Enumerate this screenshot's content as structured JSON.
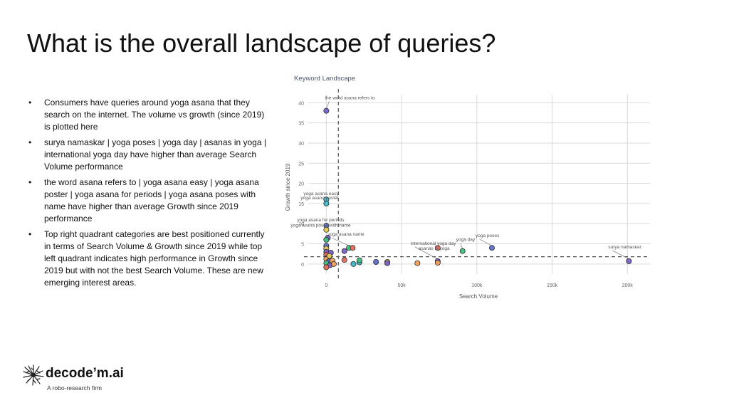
{
  "slide": {
    "title": "What is the overall landscape of queries?",
    "bullets": [
      "Consumers have queries around yoga asana that they search on the internet. The volume vs growth (since 2019) is plotted here",
      "surya namaskar | yoga poses | yoga day | asanas in yoga | international yoga day have higher than average Search Volume performance",
      "the word asana refers to | yoga asana easy | yoga asana poster | yoga asana for periods | yoga asana poses with name have higher than average Growth since 2019 performance",
      "Top right quadrant categories are best positioned currently in terms of Search Volume & Growth since 2019 while top left quadrant indicates high performance in Growth since 2019 but with not the best Search Volume. These are new emerging interest areas."
    ]
  },
  "logo": {
    "name": "decode’m.ai",
    "tagline": "A robo-research firm"
  },
  "chart_data": {
    "type": "scatter",
    "title": "Keyword Landscape",
    "xlabel": "Search Volume",
    "ylabel": "Growth since 2019",
    "xlim": [
      -12000,
      215000
    ],
    "ylim": [
      -2.5,
      42
    ],
    "x_ticks": [
      0,
      50000,
      100000,
      150000,
      200000
    ],
    "x_tick_labels": [
      "0",
      "50k",
      "100k",
      "150k",
      "200k"
    ],
    "y_ticks": [
      0,
      5,
      10,
      15,
      20,
      25,
      30,
      35,
      40
    ],
    "y_tick_labels": [
      "0",
      "5",
      "10",
      "15",
      "20",
      "25",
      "30",
      "35",
      "40"
    ],
    "grid": true,
    "reference_lines": {
      "x_average": 8000,
      "y_average": 1.8
    },
    "points": [
      {
        "x": 0,
        "y": 38,
        "color": "#7b5fc7",
        "label": "the word asana refers to"
      },
      {
        "x": 0,
        "y": 16,
        "color": "#3fb6c9",
        "label": "yoga asana easy"
      },
      {
        "x": 0,
        "y": 15,
        "color": "#3fb6c9",
        "label": "yoga asana poster"
      },
      {
        "x": 0,
        "y": 9.5,
        "color": "#5b6fc9",
        "label": "yoga asana for periods"
      },
      {
        "x": 0,
        "y": 8.5,
        "color": "#e8c95a",
        "label": "yoga asana poses with name"
      },
      {
        "x": 1000,
        "y": 6.5,
        "color": "#7b5fc7",
        "label": ""
      },
      {
        "x": 0,
        "y": 6.0,
        "color": "#3fbf7f",
        "label": ""
      },
      {
        "x": 0,
        "y": 4.5,
        "color": "#5b6fc9",
        "label": ""
      },
      {
        "x": 0,
        "y": 3.8,
        "color": "#e8c95a",
        "label": ""
      },
      {
        "x": 0,
        "y": 3.0,
        "color": "#7b5fc7",
        "label": ""
      },
      {
        "x": 0,
        "y": 2.3,
        "color": "#e36a5c",
        "label": ""
      },
      {
        "x": 1000,
        "y": 1.6,
        "color": "#3fb6c9",
        "label": ""
      },
      {
        "x": 0,
        "y": 1.2,
        "color": "#f0a05a",
        "label": ""
      },
      {
        "x": 1500,
        "y": 0.6,
        "color": "#5b6fc9",
        "label": ""
      },
      {
        "x": 0,
        "y": 0.2,
        "color": "#3fbf7f",
        "label": ""
      },
      {
        "x": 2500,
        "y": -0.3,
        "color": "#7b5fc7",
        "label": ""
      },
      {
        "x": 0,
        "y": -0.8,
        "color": "#e36a5c",
        "label": ""
      },
      {
        "x": 3000,
        "y": 2.8,
        "color": "#7b5fc7",
        "label": ""
      },
      {
        "x": 2000,
        "y": 2.0,
        "color": "#e8c95a",
        "label": ""
      },
      {
        "x": 4000,
        "y": 0.8,
        "color": "#f0a05a",
        "label": ""
      },
      {
        "x": 5000,
        "y": 0.0,
        "color": "#f0a05a",
        "label": ""
      },
      {
        "x": 15000,
        "y": 4.0,
        "color": "#3fbf7f",
        "label": "yoga asana name"
      },
      {
        "x": 17500,
        "y": 4.0,
        "color": "#e36a5c",
        "label": ""
      },
      {
        "x": 12000,
        "y": 3.2,
        "color": "#7b5fc7",
        "label": ""
      },
      {
        "x": 12000,
        "y": 1.0,
        "color": "#e36a5c",
        "label": ""
      },
      {
        "x": 18000,
        "y": 0.0,
        "color": "#3fb6c9",
        "label": ""
      },
      {
        "x": 22000,
        "y": 0.4,
        "color": "#3fb6c9",
        "label": ""
      },
      {
        "x": 22000,
        "y": 0.9,
        "color": "#3fbf7f",
        "label": ""
      },
      {
        "x": 33000,
        "y": 0.5,
        "color": "#5b6fc9",
        "label": ""
      },
      {
        "x": 40500,
        "y": 0.5,
        "color": "#e8c95a",
        "label": ""
      },
      {
        "x": 40500,
        "y": 0.2,
        "color": "#7b5fc7",
        "label": ""
      },
      {
        "x": 60500,
        "y": 0.2,
        "color": "#f0a05a",
        "label": ""
      },
      {
        "x": 74000,
        "y": 4.0,
        "color": "#e36a5c",
        "label": "asanas in yoga"
      },
      {
        "x": 74000,
        "y": 0.7,
        "color": "#7b5fc7",
        "label": "international yoga day"
      },
      {
        "x": 74000,
        "y": 0.3,
        "color": "#f0a05a",
        "label": ""
      },
      {
        "x": 90500,
        "y": 3.2,
        "color": "#3fbf7f",
        "label": "yoga day"
      },
      {
        "x": 110000,
        "y": 4.0,
        "color": "#5b6fc9",
        "label": "yoga poses"
      },
      {
        "x": 201000,
        "y": 0.7,
        "color": "#7b5fc7",
        "label": "surya namaskar"
      }
    ],
    "annotations": [
      {
        "text": "the word asana refers to",
        "x": 0,
        "y": 38
      },
      {
        "text": "yoga asana easy",
        "x": 0,
        "y": 16
      },
      {
        "text": "yoga asana poster",
        "x": 0,
        "y": 15
      },
      {
        "text": "yoga asana for periods",
        "x": 0,
        "y": 9.5
      },
      {
        "text": "yoga asana poses with name",
        "x": 0,
        "y": 8.5
      },
      {
        "text": "yoga asana name",
        "x": 15000,
        "y": 4.0
      },
      {
        "text": "international yoga day",
        "x": 74000,
        "y": 0.7
      },
      {
        "text": "yoga day",
        "x": 90500,
        "y": 3.2
      },
      {
        "text": "asanas in yoga",
        "x": 74000,
        "y": 4.0
      },
      {
        "text": "yoga poses",
        "x": 110000,
        "y": 4.0
      },
      {
        "text": "surya namaskar",
        "x": 201000,
        "y": 0.7
      }
    ]
  }
}
